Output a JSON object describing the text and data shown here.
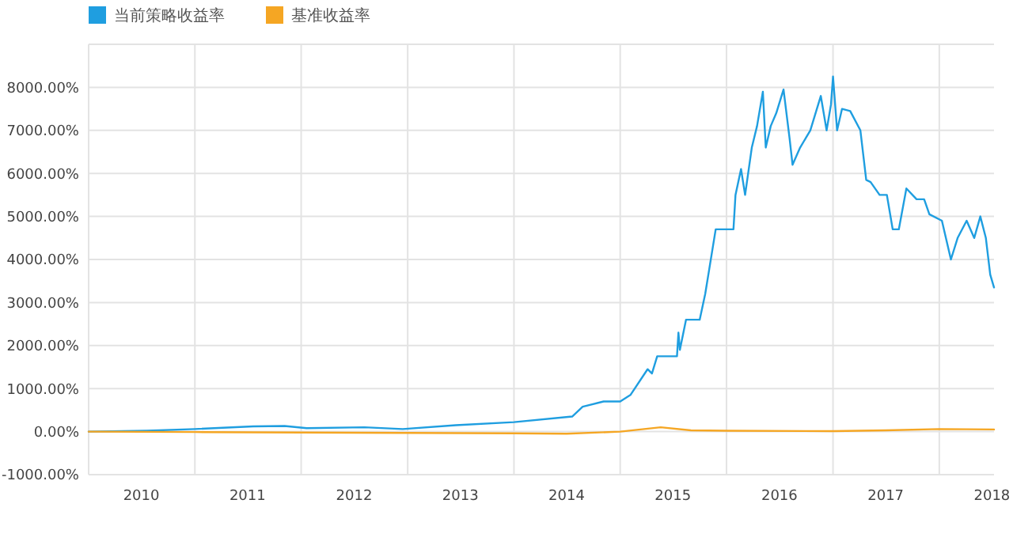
{
  "chart_data": {
    "type": "line",
    "x": [
      "2010-01-01",
      "2010-07-20",
      "2011-01-01",
      "2011-07-20",
      "2011-11-05",
      "2012-01-20",
      "2012-08-05",
      "2012-12-15",
      "2013-06-15",
      "2014-01-01",
      "2014-07-20",
      "2014-08-25",
      "2014-11-05",
      "2015-01-01",
      "2015-02-05",
      "2015-04-05",
      "2015-04-20",
      "2015-05-08",
      "2015-07-15",
      "2015-07-20",
      "2015-07-25",
      "2015-08-15",
      "2015-10-01",
      "2015-10-20",
      "2015-11-01",
      "2015-11-25",
      "2016-01-25",
      "2016-02-01",
      "2016-02-20",
      "2016-03-05",
      "2016-03-28",
      "2016-04-15",
      "2016-05-05",
      "2016-05-15",
      "2016-06-01",
      "2016-06-20",
      "2016-07-15",
      "2016-08-05",
      "2016-08-15",
      "2016-09-10",
      "2016-10-15",
      "2016-11-20",
      "2016-12-10",
      "2016-12-25",
      "2017-01-01",
      "2017-01-15",
      "2017-02-01",
      "2017-03-01",
      "2017-04-05",
      "2017-04-25",
      "2017-05-10",
      "2017-06-10",
      "2017-07-05",
      "2017-07-25",
      "2017-08-15",
      "2017-09-10",
      "2017-10-15",
      "2017-11-10",
      "2017-11-28",
      "2018-01-10",
      "2018-02-10",
      "2018-03-05",
      "2018-04-05",
      "2018-05-01",
      "2018-05-22",
      "2018-06-10",
      "2018-06-25",
      "2018-07-08"
    ],
    "series": [
      {
        "name": "当前策略收益率",
        "color": "#1f9ee0",
        "values": [
          0,
          20,
          60,
          120,
          130,
          80,
          100,
          60,
          150,
          220,
          350,
          580,
          700,
          700,
          850,
          1450,
          1350,
          1750,
          1750,
          2300,
          1900,
          2600,
          2600,
          3200,
          3700,
          4700,
          4700,
          5500,
          6100,
          5500,
          6600,
          7100,
          7900,
          6600,
          7100,
          7400,
          7950,
          6800,
          6200,
          6600,
          7000,
          7800,
          7000,
          7600,
          8250,
          7000,
          7500,
          7450,
          7000,
          5850,
          5800,
          5500,
          5500,
          4700,
          4700,
          5650,
          5400,
          5400,
          5050,
          4900,
          4000,
          4500,
          4900,
          4500,
          5000,
          4500,
          3650,
          3350
        ]
      },
      {
        "name": "基准收益率",
        "color": "#f5a623",
        "x": [
          "2010-01-01",
          "2011-01-01",
          "2012-01-01",
          "2013-01-01",
          "2014-01-01",
          "2014-07-01",
          "2015-01-01",
          "2015-05-20",
          "2015-09-01",
          "2016-01-01",
          "2017-01-01",
          "2017-07-01",
          "2018-01-01",
          "2018-07-08"
        ],
        "values": [
          0,
          -10,
          -20,
          -30,
          -40,
          -50,
          0,
          100,
          30,
          20,
          10,
          30,
          60,
          50
        ]
      }
    ],
    "xlim": [
      "2010-01-01",
      "2018-07-08"
    ],
    "xticks": [
      {
        "value": "2010-07-01",
        "label": "2010"
      },
      {
        "value": "2011-07-01",
        "label": "2011"
      },
      {
        "value": "2012-07-01",
        "label": "2012"
      },
      {
        "value": "2013-07-01",
        "label": "2013"
      },
      {
        "value": "2014-07-01",
        "label": "2014"
      },
      {
        "value": "2015-07-01",
        "label": "2015"
      },
      {
        "value": "2016-07-01",
        "label": "2016"
      },
      {
        "value": "2017-07-01",
        "label": "2017"
      },
      {
        "value": "2018-07-01",
        "label": "2018"
      },
      {
        "value": "2011-01-01",
        "label": null
      },
      {
        "value": "2012-01-01",
        "label": null
      },
      {
        "value": "2013-01-01",
        "label": null
      },
      {
        "value": "2014-01-01",
        "label": null
      },
      {
        "value": "2015-01-01",
        "label": null
      },
      {
        "value": "2016-01-01",
        "label": null
      },
      {
        "value": "2017-01-01",
        "label": null
      },
      {
        "value": "2018-01-01",
        "label": null
      }
    ],
    "ylim": [
      -1000,
      9000
    ],
    "yticks": [
      {
        "value": -1000,
        "label": "-1000.00%"
      },
      {
        "value": 0,
        "label": "0.00%"
      },
      {
        "value": 1000,
        "label": "1000.00%"
      },
      {
        "value": 2000,
        "label": "2000.00%"
      },
      {
        "value": 3000,
        "label": "3000.00%"
      },
      {
        "value": 4000,
        "label": "4000.00%"
      },
      {
        "value": 5000,
        "label": "5000.00%"
      },
      {
        "value": 6000,
        "label": "6000.00%"
      },
      {
        "value": 7000,
        "label": "7000.00%"
      },
      {
        "value": 8000,
        "label": "8000.00%"
      },
      {
        "value": 9000,
        "label": null
      }
    ],
    "grid": true,
    "legend": "top left",
    "marker": "none",
    "line_style": "solid"
  }
}
